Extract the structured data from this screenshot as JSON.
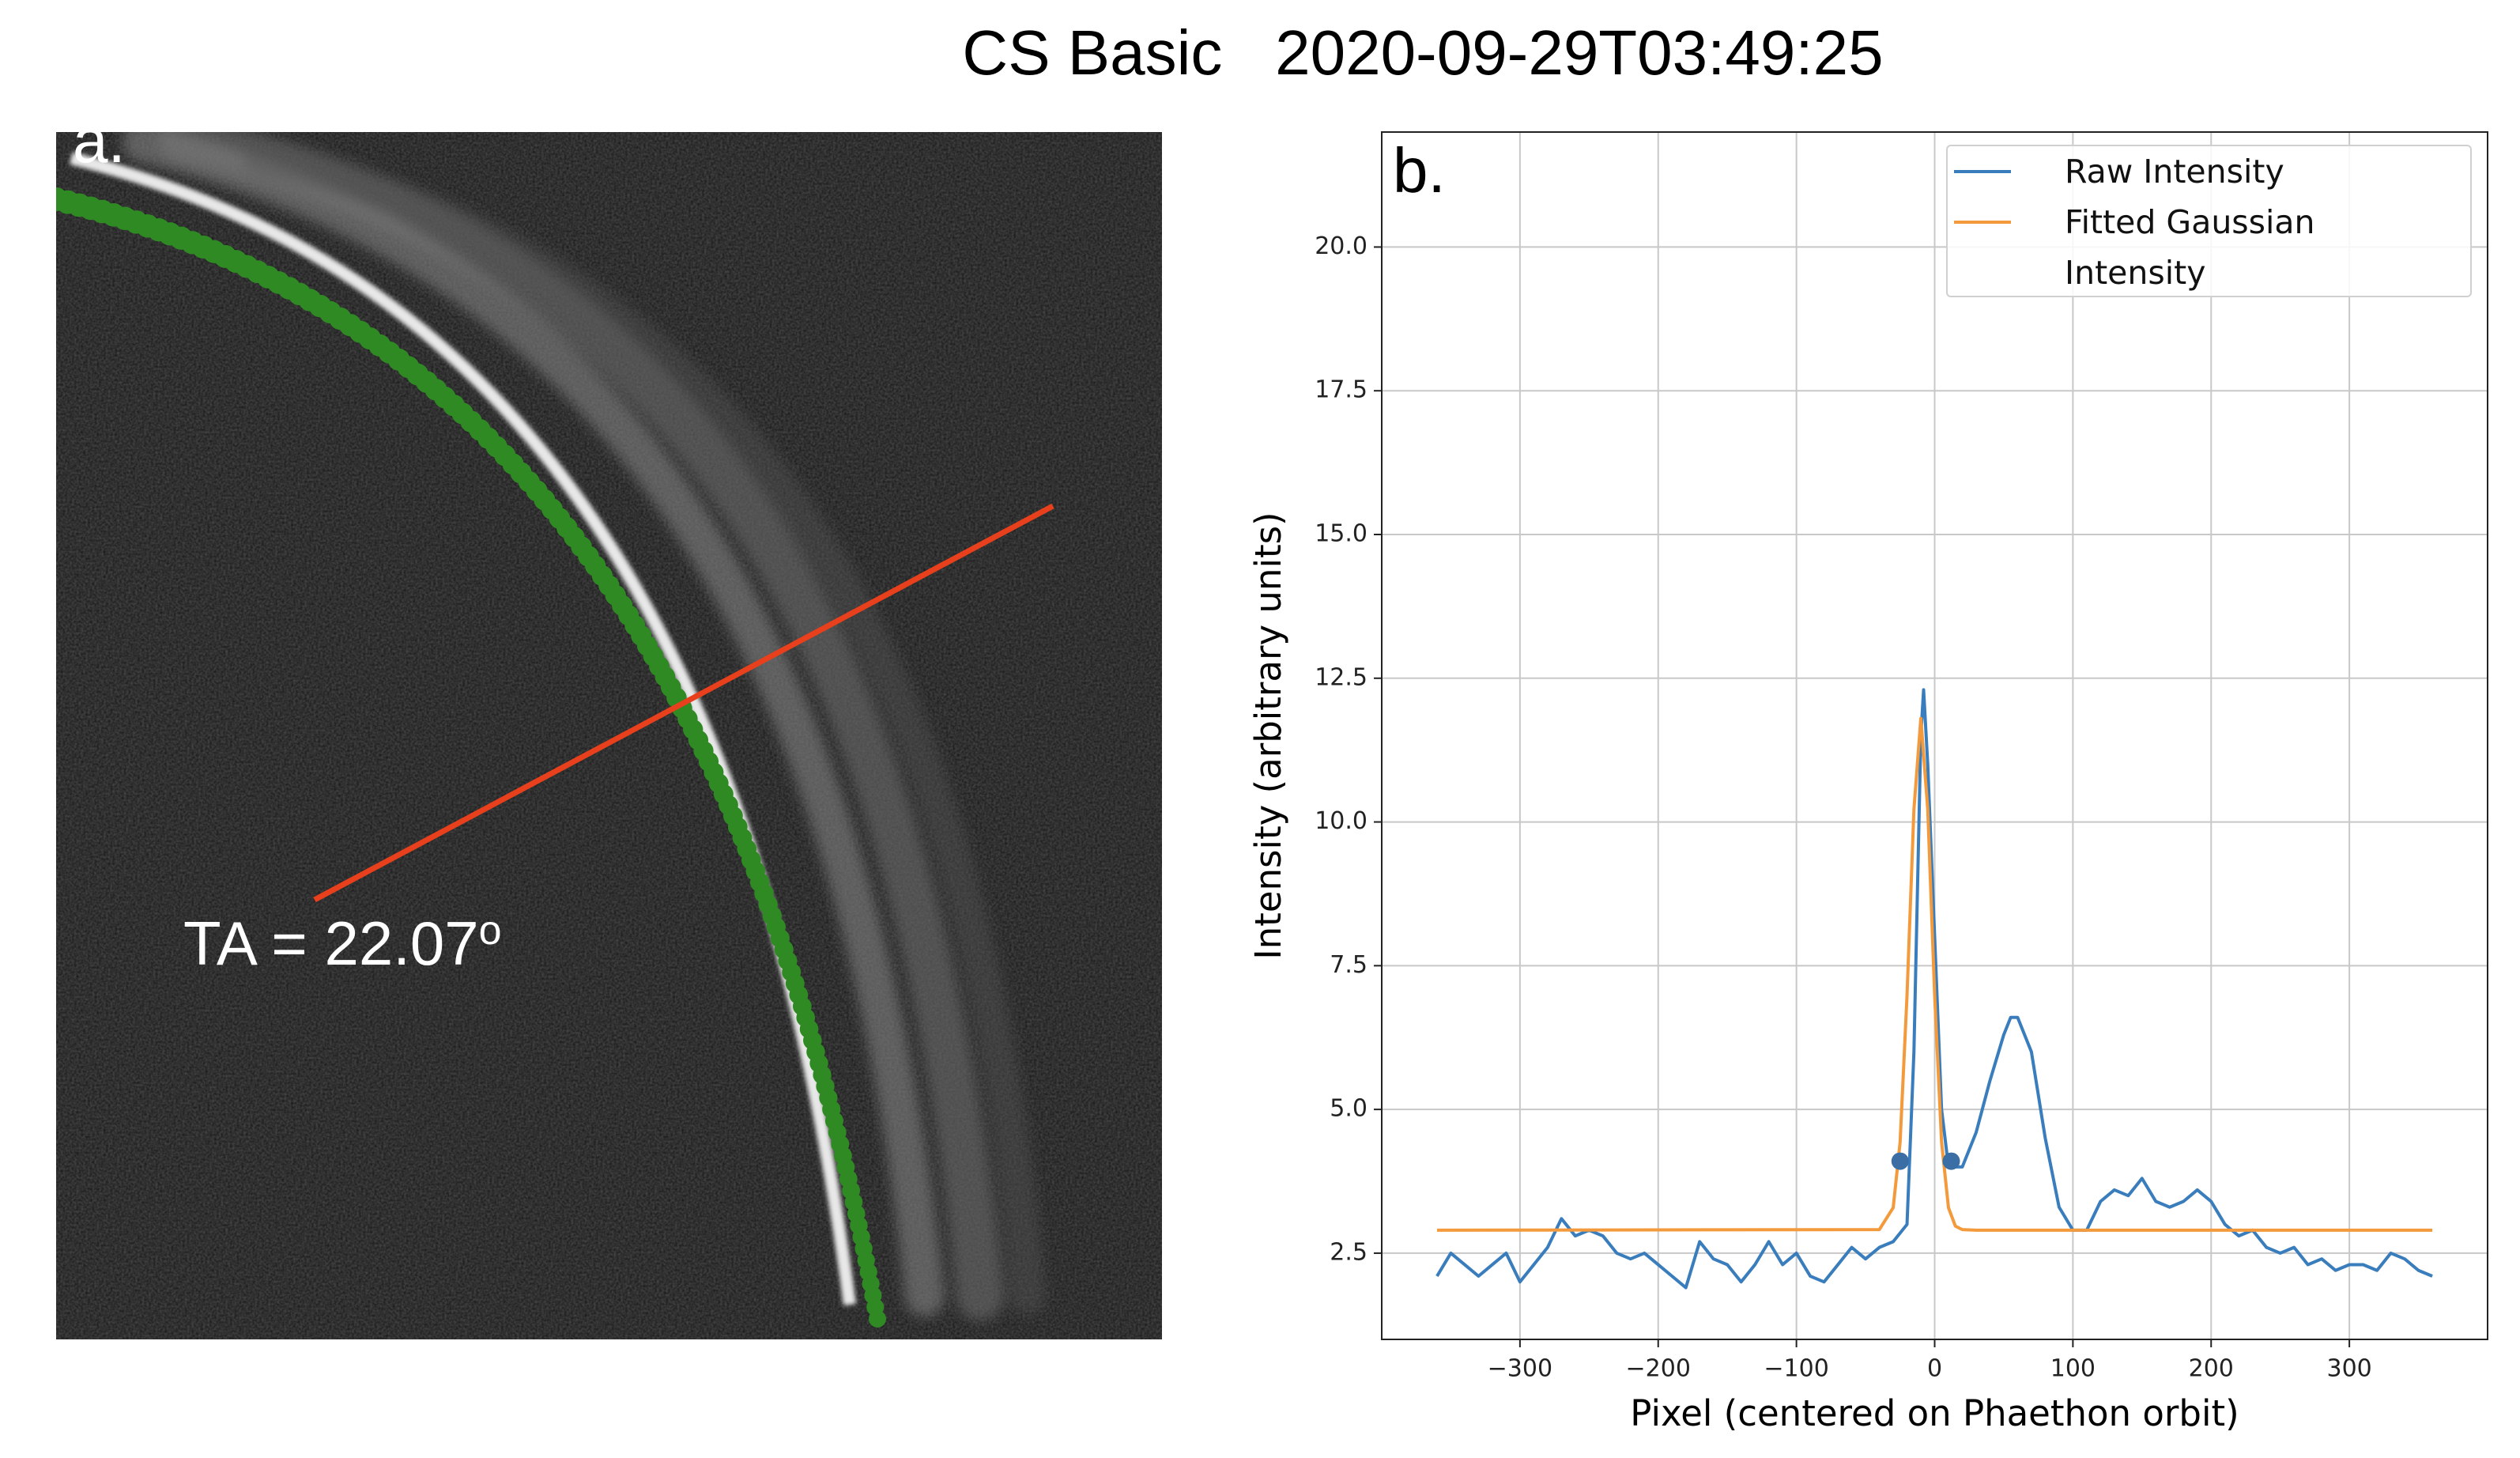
{
  "title": "CS Basic   2020-09-29T03:49:25",
  "panel_a": {
    "label": "a.",
    "ta_label": "TA = 22.07",
    "ta_sup": "o"
  },
  "chart_data": {
    "type": "line",
    "panel_label": "b.",
    "xlabel": "Pixel (centered on Phaethon orbit)",
    "ylabel": "Intensity (arbitrary units)",
    "xlim": [
      -400,
      400
    ],
    "ylim": [
      1,
      22
    ],
    "xticks": [
      {
        "value": -300,
        "label": "−300"
      },
      {
        "value": -200,
        "label": "−200"
      },
      {
        "value": -100,
        "label": "−100"
      },
      0,
      100,
      200,
      300
    ],
    "yticks": [
      2.5,
      {
        "value": 5,
        "label": "5.0"
      },
      7.5,
      {
        "value": 10,
        "label": "10.0"
      },
      12.5,
      {
        "value": 15,
        "label": "15.0"
      },
      17.5,
      {
        "value": 20,
        "label": "20.0"
      }
    ],
    "grid": true,
    "legend": "upper right",
    "series": [
      {
        "name": "Raw Intensity",
        "color": "#3a7dbd",
        "x": [
          -360,
          -350,
          -340,
          -330,
          -320,
          -310,
          -300,
          -290,
          -280,
          -270,
          -260,
          -250,
          -240,
          -230,
          -220,
          -210,
          -200,
          -190,
          -180,
          -170,
          -160,
          -150,
          -140,
          -130,
          -120,
          -110,
          -100,
          -90,
          -80,
          -70,
          -60,
          -50,
          -40,
          -30,
          -20,
          -15,
          -10,
          -8,
          -5,
          0,
          5,
          10,
          20,
          30,
          40,
          50,
          55,
          60,
          70,
          80,
          90,
          100,
          110,
          120,
          130,
          140,
          150,
          160,
          170,
          180,
          190,
          200,
          210,
          220,
          230,
          240,
          250,
          260,
          270,
          280,
          290,
          300,
          310,
          320,
          330,
          340,
          350,
          360
        ],
        "values": [
          2.1,
          2.5,
          2.3,
          2.1,
          2.3,
          2.5,
          2.0,
          2.3,
          2.6,
          3.1,
          2.8,
          2.9,
          2.8,
          2.5,
          2.4,
          2.5,
          2.3,
          2.1,
          1.9,
          2.7,
          2.4,
          2.3,
          2.0,
          2.3,
          2.7,
          2.3,
          2.5,
          2.1,
          2.0,
          2.3,
          2.6,
          2.4,
          2.6,
          2.7,
          3.0,
          6.0,
          11.5,
          12.3,
          11.0,
          8.0,
          5.0,
          4.0,
          4.0,
          4.6,
          5.5,
          6.3,
          6.6,
          6.6,
          6.0,
          4.5,
          3.3,
          2.9,
          2.9,
          3.4,
          3.6,
          3.5,
          3.8,
          3.4,
          3.3,
          3.4,
          3.6,
          3.4,
          3.0,
          2.8,
          2.9,
          2.6,
          2.5,
          2.6,
          2.3,
          2.4,
          2.2,
          2.3,
          2.3,
          2.2,
          2.5,
          2.4,
          2.2,
          2.1
        ]
      },
      {
        "name": "Fitted Gaussian Intensity",
        "color": "#f39a3c",
        "x": [
          -360,
          -40,
          -30,
          -25,
          -20,
          -15,
          -10,
          -5,
          0,
          5,
          10,
          15,
          20,
          30,
          360
        ],
        "values": [
          2.9,
          2.91,
          3.29,
          4.43,
          6.98,
          10.22,
          11.8,
          10.22,
          6.98,
          4.43,
          3.29,
          2.97,
          2.91,
          2.9,
          2.9
        ]
      }
    ],
    "markers": {
      "color": "#3a6ea5",
      "x": [
        -25,
        12
      ],
      "values": [
        4.1,
        4.1
      ]
    }
  }
}
